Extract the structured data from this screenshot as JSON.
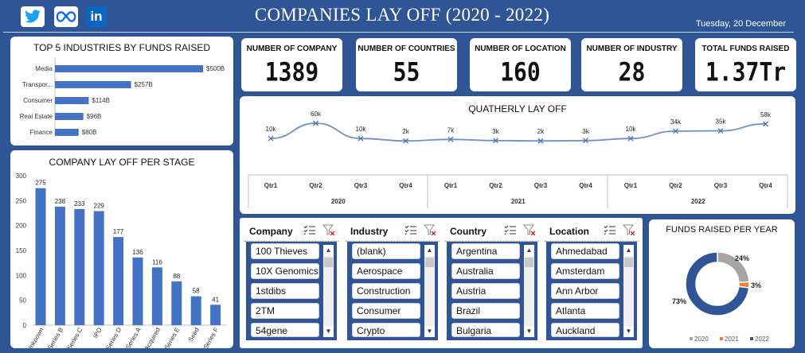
{
  "header": {
    "title": "COMPANIES LAY OFF (2020 - 2022)",
    "date": "Tuesday, 20 December",
    "social_icons": [
      "twitter-icon",
      "meta-icon",
      "linkedin-icon"
    ]
  },
  "kpis": [
    {
      "label": "NUMBER OF COMPANY",
      "value": "1389"
    },
    {
      "label": "NUMBER OF COUNTRIES",
      "value": "55"
    },
    {
      "label": "NUMBER OF LOCATION",
      "value": "160"
    },
    {
      "label": "NUMBER OF INDUSTRY",
      "value": "28"
    },
    {
      "label": "TOTAL FUNDS RAISED",
      "value": "1.37Tr"
    }
  ],
  "chart_data": [
    {
      "type": "bar",
      "orientation": "horizontal",
      "title": "TOP 5 INDUSTRIES BY FUNDS RAISED",
      "categories": [
        "Media",
        "Transpor...",
        "Consumer",
        "Real Estate",
        "Finance"
      ],
      "values": [
        500,
        257,
        114,
        96,
        80
      ],
      "data_labels": [
        "$500B",
        "$257B",
        "$114B",
        "$96B",
        "$80B"
      ],
      "color": "#4472c4"
    },
    {
      "type": "bar",
      "title": "COMPANY LAY OFF PER STAGE",
      "categories": [
        "Unknown",
        "Series B",
        "Series C",
        "IPO",
        "Series D",
        "Series A",
        "Acquired",
        "Series E",
        "Seed",
        "Series F"
      ],
      "values": [
        275,
        238,
        233,
        229,
        177,
        136,
        116,
        88,
        58,
        41
      ],
      "yticks": [
        "0",
        "50",
        "100",
        "150",
        "200",
        "250",
        "300"
      ],
      "ylim": [
        0,
        300
      ],
      "color": "#4472c4"
    },
    {
      "type": "line",
      "title": "QUATHERLY LAY OFF",
      "categories": [
        "Qtr1",
        "Qtr2",
        "Qtr3",
        "Qtr4",
        "Qtr1",
        "Qtr2",
        "Qtr3",
        "Qtr4",
        "Qtr1",
        "Qtr2",
        "Qtr3",
        "Qtr4"
      ],
      "years": [
        "2020",
        "2021",
        "2022"
      ],
      "values": [
        10,
        60,
        10,
        2,
        7,
        3,
        2,
        3,
        10,
        34,
        35,
        58
      ],
      "data_labels": [
        "10k",
        "60k",
        "10k",
        "2k",
        "7k",
        "3k",
        "2k",
        "3k",
        "10k",
        "34k",
        "35k",
        "58k"
      ],
      "color": "#6f8fc6"
    },
    {
      "type": "pie",
      "donut": true,
      "title": "FUNDS RAISED PER YEAR",
      "categories": [
        "2020",
        "2021",
        "2022"
      ],
      "values": [
        24,
        3,
        73
      ],
      "data_labels": [
        "24%",
        "3%",
        "73%"
      ],
      "colors": [
        "#a5a5a5",
        "#ed7d31",
        "#2f5597"
      ],
      "legend": "bottom"
    }
  ],
  "slicers": [
    {
      "title": "Company",
      "items": [
        "100 Thieves",
        "10X Genomics",
        "1stdibs",
        "2TM",
        "54gene"
      ]
    },
    {
      "title": "Industry",
      "items": [
        "(blank)",
        "Aerospace",
        "Construction",
        "Consumer",
        "Crypto"
      ]
    },
    {
      "title": "Country",
      "items": [
        "Argentina",
        "Australia",
        "Austria",
        "Brazil",
        "Bulgaria"
      ]
    },
    {
      "title": "Location",
      "items": [
        "Ahmedabad",
        "Amsterdam",
        "Ann Arbor",
        "Atlanta",
        "Auckland"
      ]
    }
  ]
}
